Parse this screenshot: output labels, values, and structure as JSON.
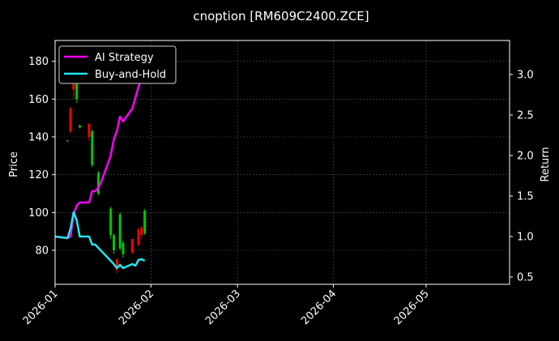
{
  "chart_data": {
    "type": "line",
    "title": "cnoption [RM609C2400.ZCE]",
    "xlabel": "",
    "ylabel_left": "Price",
    "ylabel_right": "Return",
    "x_axis": {
      "type": "date",
      "range": [
        "2026-01-01",
        "2026-05-28"
      ],
      "ticks": [
        "2026-01-01",
        "2026-02-01",
        "2026-03-01",
        "2026-04-01",
        "2026-05-01"
      ],
      "tick_labels": [
        "2026-01",
        "2026-02",
        "2026-03",
        "2026-04",
        "2026-05"
      ],
      "tick_label_rotation": 45
    },
    "y_axis_left": {
      "range": [
        62,
        191
      ],
      "ticks": [
        80,
        100,
        120,
        140,
        160,
        180
      ],
      "tick_labels": [
        "80",
        "100",
        "120",
        "140",
        "160",
        "180"
      ]
    },
    "y_axis_right": {
      "range": [
        0.41,
        3.42
      ],
      "ticks": [
        0.5,
        1.0,
        1.5,
        2.0,
        2.5,
        3.0
      ],
      "tick_labels": [
        "0.5",
        "1.0",
        "1.5",
        "2.0",
        "2.5",
        "3.0"
      ]
    },
    "grid": true,
    "legend_position": "upper-left",
    "series": [
      {
        "name": "AI Strategy",
        "axis": "right",
        "color": "#ff00ff",
        "points": [
          [
            "2026-01-01",
            1.0
          ],
          [
            "2026-01-05",
            0.98
          ],
          [
            "2026-01-06",
            1.0
          ],
          [
            "2026-01-07",
            1.28
          ],
          [
            "2026-01-08",
            1.38
          ],
          [
            "2026-01-09",
            1.42
          ],
          [
            "2026-01-12",
            1.42
          ],
          [
            "2026-01-13",
            1.56
          ],
          [
            "2026-01-14",
            1.56
          ],
          [
            "2026-01-15",
            1.6
          ],
          [
            "2026-01-16",
            1.68
          ],
          [
            "2026-01-19",
            2.0
          ],
          [
            "2026-01-20",
            2.2
          ],
          [
            "2026-01-21",
            2.3
          ],
          [
            "2026-01-22",
            2.48
          ],
          [
            "2026-01-23",
            2.42
          ],
          [
            "2026-01-26",
            2.58
          ],
          [
            "2026-01-28",
            2.85
          ],
          [
            "2026-01-30",
            3.1
          ],
          [
            "2026-01-31",
            3.3
          ]
        ]
      },
      {
        "name": "Buy-and-Hold",
        "axis": "right",
        "color": "#22e5f0",
        "points": [
          [
            "2026-01-01",
            1.0
          ],
          [
            "2026-01-05",
            0.98
          ],
          [
            "2026-01-06",
            1.1
          ],
          [
            "2026-01-07",
            1.3
          ],
          [
            "2026-01-08",
            1.2
          ],
          [
            "2026-01-09",
            1.0
          ],
          [
            "2026-01-12",
            1.0
          ],
          [
            "2026-01-13",
            0.9
          ],
          [
            "2026-01-14",
            0.9
          ],
          [
            "2026-01-15",
            0.86
          ],
          [
            "2026-01-16",
            0.82
          ],
          [
            "2026-01-19",
            0.7
          ],
          [
            "2026-01-20",
            0.66
          ],
          [
            "2026-01-21",
            0.61
          ],
          [
            "2026-01-22",
            0.65
          ],
          [
            "2026-01-23",
            0.61
          ],
          [
            "2026-01-26",
            0.66
          ],
          [
            "2026-01-27",
            0.64
          ],
          [
            "2026-01-28",
            0.71
          ],
          [
            "2026-01-29",
            0.72
          ],
          [
            "2026-01-30",
            0.7
          ]
        ]
      }
    ],
    "candlesticks": {
      "axis": "left",
      "up_color": "#00c800",
      "down_color": "#ff0000",
      "data": [
        {
          "date": "2026-01-05",
          "open": 138,
          "close": 138,
          "high": 138.5,
          "low": 137.5
        },
        {
          "date": "2026-01-06",
          "open": 155,
          "close": 143,
          "high": 156,
          "low": 142
        },
        {
          "date": "2026-01-07",
          "open": 185,
          "close": 165,
          "high": 188,
          "low": 160
        },
        {
          "date": "2026-01-08",
          "open": 160,
          "close": 168,
          "high": 176,
          "low": 158
        },
        {
          "date": "2026-01-09",
          "open": 145,
          "close": 146,
          "high": 146.5,
          "low": 144.5
        },
        {
          "date": "2026-01-12",
          "open": 147,
          "close": 140,
          "high": 147,
          "low": 138
        },
        {
          "date": "2026-01-13",
          "open": 125,
          "close": 143,
          "high": 144,
          "low": 124
        },
        {
          "date": "2026-01-15",
          "open": 110,
          "close": 121,
          "high": 122,
          "low": 109
        },
        {
          "date": "2026-01-19",
          "open": 88,
          "close": 102,
          "high": 103,
          "low": 86
        },
        {
          "date": "2026-01-20",
          "open": 80,
          "close": 88,
          "high": 89,
          "low": 78
        },
        {
          "date": "2026-01-21",
          "open": 75,
          "close": 70,
          "high": 76,
          "low": 68
        },
        {
          "date": "2026-01-22",
          "open": 81,
          "close": 99,
          "high": 100,
          "low": 80
        },
        {
          "date": "2026-01-23",
          "open": 78,
          "close": 84,
          "high": 85,
          "low": 76
        },
        {
          "date": "2026-01-26",
          "open": 86,
          "close": 79,
          "high": 86,
          "low": 78
        },
        {
          "date": "2026-01-28",
          "open": 91,
          "close": 83,
          "high": 92,
          "low": 82
        },
        {
          "date": "2026-01-29",
          "open": 92,
          "close": 88,
          "high": 93,
          "low": 86
        },
        {
          "date": "2026-01-30",
          "open": 89,
          "close": 101,
          "high": 102,
          "low": 88
        }
      ]
    }
  }
}
